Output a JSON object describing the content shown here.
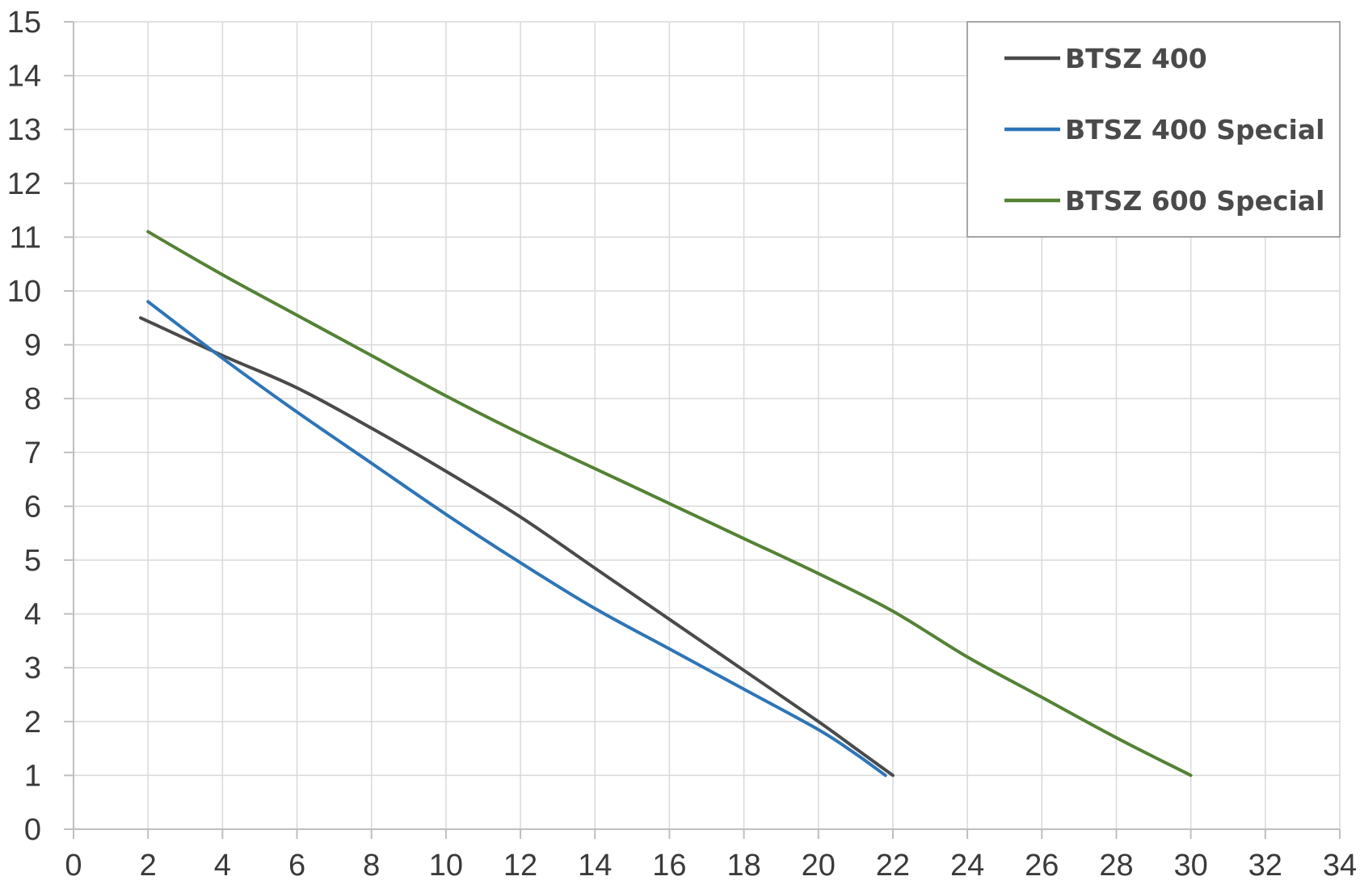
{
  "chart_data": {
    "type": "line",
    "title": "",
    "xlabel": "",
    "ylabel": "",
    "xlim": [
      0,
      34
    ],
    "ylim": [
      0,
      15
    ],
    "x_ticks": [
      "0",
      "2",
      "4",
      "6",
      "8",
      "10",
      "12",
      "14",
      "16",
      "18",
      "20",
      "22",
      "24",
      "26",
      "28",
      "30",
      "32",
      "34"
    ],
    "y_ticks": [
      "0",
      "1",
      "2",
      "3",
      "4",
      "5",
      "6",
      "7",
      "8",
      "9",
      "10",
      "11",
      "12",
      "13",
      "14",
      "15"
    ],
    "grid": true,
    "legend_position": "top-right",
    "series": [
      {
        "name": "BTSZ 400",
        "color": "#4a4a4a",
        "x": [
          1.8,
          4,
          6,
          8,
          10,
          12,
          14,
          16,
          18,
          20,
          21,
          22
        ],
        "y": [
          9.5,
          8.8,
          8.2,
          7.45,
          6.65,
          5.8,
          4.85,
          3.9,
          2.95,
          2.0,
          1.5,
          1.0
        ]
      },
      {
        "name": "BTSZ 400 Special",
        "color": "#2e75b6",
        "x": [
          2,
          4,
          6,
          8,
          10,
          12,
          14,
          16,
          18,
          20,
          21,
          21.8
        ],
        "y": [
          9.8,
          8.75,
          7.75,
          6.8,
          5.85,
          4.95,
          4.1,
          3.35,
          2.6,
          1.85,
          1.4,
          1.0
        ]
      },
      {
        "name": "BTSZ 600 Special",
        "color": "#548235",
        "x": [
          2,
          4,
          6,
          8,
          10,
          12,
          14,
          16,
          18,
          20,
          22,
          24,
          26,
          28,
          30
        ],
        "y": [
          11.1,
          10.3,
          9.55,
          8.8,
          8.05,
          7.35,
          6.7,
          6.05,
          5.4,
          4.75,
          4.05,
          3.2,
          2.45,
          1.7,
          1.0
        ]
      }
    ]
  }
}
